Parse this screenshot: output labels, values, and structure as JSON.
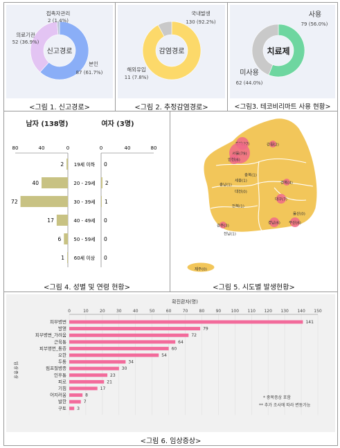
{
  "captions": {
    "fig1": "<그림 1. 신고경로>",
    "fig2": "<그림 2. 추정감염경로>",
    "fig3": "<그림3. 테코비리마트 사용 현황>",
    "fig4": "<그림 4. 성별 및 연령 현황>",
    "fig5": "<그림 5. 시도별 발생현황>",
    "fig6": "<그림 6. 임상증상>"
  },
  "chart_data": [
    {
      "type": "pie",
      "center_label": "신고경로",
      "slices": [
        {
          "label": "본인",
          "value_text": "87 (61.7%)",
          "value": 87,
          "percent": 61.7,
          "color": "#8aaef7"
        },
        {
          "label": "의료기관",
          "value_text": "52 (36.9%)",
          "value": 52,
          "percent": 36.9,
          "color": "#e3c4f3"
        },
        {
          "label": "접촉자관리",
          "value_text": "2 (1.4%)",
          "value": 2,
          "percent": 1.4,
          "color": "#b9c3d6"
        }
      ]
    },
    {
      "type": "pie",
      "center_label": "감염경로",
      "slices": [
        {
          "label": "국내발생",
          "value_text": "130 (92.2%)",
          "value": 130,
          "percent": 92.2,
          "color": "#fcd96a"
        },
        {
          "label": "해외유입",
          "value_text": "11 (7.8%)",
          "value": 11,
          "percent": 7.8,
          "color": "#c9c9c9"
        }
      ]
    },
    {
      "type": "pie",
      "center_label": "치료제",
      "slices": [
        {
          "label": "사용",
          "value_text": "79 (56.0%)",
          "value": 79,
          "percent": 56.0,
          "color": "#6ed6a0"
        },
        {
          "label": "미사용",
          "value_text": "62 (44.0%)",
          "value": 62,
          "percent": 44.0,
          "color": "#c9c9c9"
        }
      ]
    },
    {
      "type": "bar",
      "orientation": "horizontal",
      "categories": [
        "19세 이하",
        "20 - 29세",
        "30 - 39세",
        "40 - 49세",
        "50 - 59세",
        "60세 이상"
      ],
      "series": [
        {
          "name": "남자 (138명)",
          "values": [
            2,
            40,
            72,
            17,
            6,
            1
          ],
          "color": "#c8c283"
        },
        {
          "name": "여자 (3명)",
          "values": [
            0,
            2,
            1,
            0,
            0,
            0
          ],
          "color": "#c8c283"
        }
      ],
      "xlim_left": [
        80,
        0
      ],
      "xlim_right": [
        0,
        80
      ],
      "ticks_left": [
        "80",
        "40",
        "0"
      ],
      "ticks_right": [
        "0",
        "40",
        "80"
      ]
    },
    {
      "type": "map",
      "regions": [
        {
          "label": "경기(27)",
          "value": 27,
          "highlight": true
        },
        {
          "label": "서울(79)",
          "value": 79,
          "highlight": true
        },
        {
          "label": "인천(6)",
          "value": 6,
          "highlight": true
        },
        {
          "label": "강원(2)",
          "value": 2,
          "highlight": true
        },
        {
          "label": "충북(1)",
          "value": 1,
          "highlight": false
        },
        {
          "label": "세종(1)",
          "value": 1,
          "highlight": false
        },
        {
          "label": "충남(1)",
          "value": 1,
          "highlight": false
        },
        {
          "label": "대전(0)",
          "value": 0,
          "highlight": false
        },
        {
          "label": "경북(4)",
          "value": 4,
          "highlight": true
        },
        {
          "label": "대구(7)",
          "value": 7,
          "highlight": true
        },
        {
          "label": "전북(1)",
          "value": 1,
          "highlight": false
        },
        {
          "label": "울산(0)",
          "value": 0,
          "highlight": false
        },
        {
          "label": "경남(6)",
          "value": 6,
          "highlight": true
        },
        {
          "label": "부산(6)",
          "value": 6,
          "highlight": true
        },
        {
          "label": "광주(3)",
          "value": 3,
          "highlight": true
        },
        {
          "label": "전남(1)",
          "value": 1,
          "highlight": false
        },
        {
          "label": "제주(0)",
          "value": 0,
          "highlight": false
        }
      ]
    },
    {
      "type": "bar",
      "orientation": "horizontal",
      "title": "확진환자(명)",
      "ylabel": "임상증상",
      "categories": [
        "피부병변",
        "발열",
        "피부병변_가려움",
        "근육통",
        "피부병변_통증",
        "오한",
        "두통",
        "림프절병증",
        "인후통",
        "피로",
        "기침",
        "어지러움",
        "발한",
        "구토"
      ],
      "values": [
        141,
        79,
        72,
        64,
        60,
        54,
        34,
        30,
        23,
        21,
        17,
        8,
        7,
        3
      ],
      "xlim": [
        0,
        150
      ],
      "xticks": [
        0,
        10,
        20,
        30,
        40,
        50,
        60,
        70,
        80,
        90,
        100,
        110,
        120,
        130,
        140,
        150
      ],
      "color": "#f26b9b",
      "notes": [
        "* 중복증상 포함",
        "** 추가 조사에 따라 변동가능"
      ]
    }
  ]
}
